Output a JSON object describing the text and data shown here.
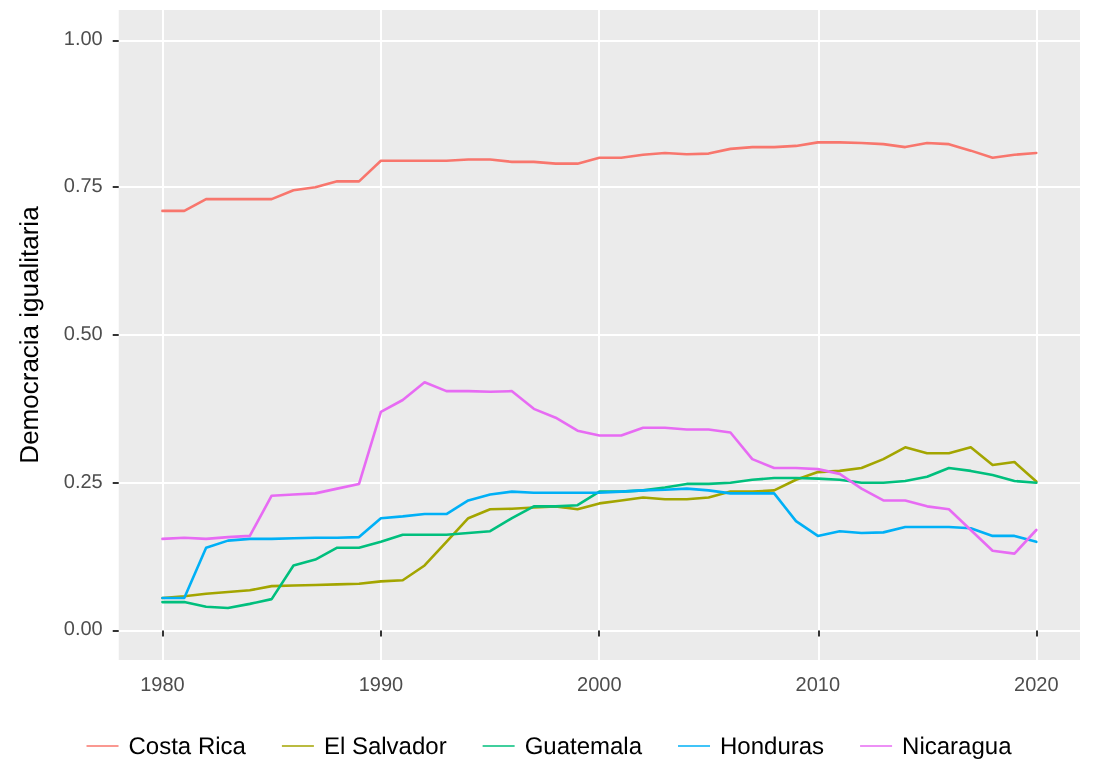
{
  "chart_data": {
    "type": "line",
    "ylabel": "Democracia igualitaria",
    "x": [
      1980,
      1981,
      1982,
      1983,
      1984,
      1985,
      1986,
      1987,
      1988,
      1989,
      1990,
      1991,
      1992,
      1993,
      1994,
      1995,
      1996,
      1997,
      1998,
      1999,
      2000,
      2001,
      2002,
      2003,
      2004,
      2005,
      2006,
      2007,
      2008,
      2009,
      2010,
      2011,
      2012,
      2013,
      2014,
      2015,
      2016,
      2017,
      2018,
      2019,
      2020
    ],
    "series": [
      {
        "name": "Costa Rica",
        "color": "#f8766d",
        "values": [
          0.71,
          0.71,
          0.73,
          0.73,
          0.73,
          0.73,
          0.745,
          0.75,
          0.76,
          0.76,
          0.795,
          0.795,
          0.795,
          0.795,
          0.797,
          0.797,
          0.793,
          0.793,
          0.79,
          0.79,
          0.8,
          0.8,
          0.805,
          0.808,
          0.806,
          0.807,
          0.815,
          0.818,
          0.818,
          0.82,
          0.826,
          0.826,
          0.825,
          0.823,
          0.818,
          0.825,
          0.823,
          0.812,
          0.8,
          0.805,
          0.808
        ]
      },
      {
        "name": "El Salvador",
        "color": "#a3a500",
        "values": [
          0.055,
          0.058,
          0.062,
          0.065,
          0.068,
          0.075,
          0.076,
          0.077,
          0.078,
          0.079,
          0.083,
          0.085,
          0.11,
          0.15,
          0.19,
          0.205,
          0.206,
          0.208,
          0.21,
          0.205,
          0.215,
          0.22,
          0.225,
          0.222,
          0.222,
          0.225,
          0.235,
          0.235,
          0.237,
          0.255,
          0.268,
          0.27,
          0.275,
          0.29,
          0.31,
          0.3,
          0.3,
          0.31,
          0.28,
          0.285,
          0.252
        ]
      },
      {
        "name": "Guatemala",
        "color": "#00bf7d",
        "values": [
          0.048,
          0.048,
          0.04,
          0.038,
          0.045,
          0.053,
          0.11,
          0.12,
          0.14,
          0.14,
          0.15,
          0.162,
          0.162,
          0.162,
          0.165,
          0.168,
          0.19,
          0.21,
          0.21,
          0.212,
          0.235,
          0.235,
          0.237,
          0.242,
          0.248,
          0.248,
          0.25,
          0.255,
          0.258,
          0.258,
          0.257,
          0.255,
          0.25,
          0.25,
          0.253,
          0.26,
          0.275,
          0.27,
          0.263,
          0.253,
          0.25
        ]
      },
      {
        "name": "Honduras",
        "color": "#00b0f6",
        "values": [
          0.055,
          0.055,
          0.14,
          0.152,
          0.155,
          0.155,
          0.156,
          0.157,
          0.157,
          0.158,
          0.19,
          0.193,
          0.197,
          0.197,
          0.22,
          0.23,
          0.235,
          0.233,
          0.233,
          0.233,
          0.233,
          0.235,
          0.237,
          0.238,
          0.24,
          0.237,
          0.232,
          0.232,
          0.232,
          0.185,
          0.16,
          0.168,
          0.165,
          0.166,
          0.175,
          0.175,
          0.175,
          0.173,
          0.16,
          0.16,
          0.15
        ]
      },
      {
        "name": "Nicaragua",
        "color": "#e76bf3",
        "values": [
          0.155,
          0.157,
          0.155,
          0.158,
          0.16,
          0.228,
          0.23,
          0.232,
          0.24,
          0.248,
          0.37,
          0.39,
          0.42,
          0.405,
          0.405,
          0.404,
          0.405,
          0.375,
          0.36,
          0.338,
          0.33,
          0.33,
          0.343,
          0.343,
          0.34,
          0.34,
          0.335,
          0.29,
          0.275,
          0.275,
          0.273,
          0.265,
          0.24,
          0.22,
          0.22,
          0.21,
          0.205,
          0.17,
          0.135,
          0.13,
          0.17
        ]
      }
    ],
    "xlim": [
      1978,
      2022
    ],
    "xticks": [
      1980,
      1990,
      2000,
      2010,
      2020
    ],
    "ylim": [
      -0.05,
      1.05
    ],
    "yticks": [
      {
        "value": 0,
        "label": "0.00"
      },
      {
        "value": 0.25,
        "label": "0.25"
      },
      {
        "value": 0.5,
        "label": "0.50"
      },
      {
        "value": 0.75,
        "label": "0.75"
      },
      {
        "value": 1,
        "label": "1.00"
      }
    ],
    "grid": true,
    "legend": "bottom",
    "marker": "none",
    "line_style": "solid"
  }
}
